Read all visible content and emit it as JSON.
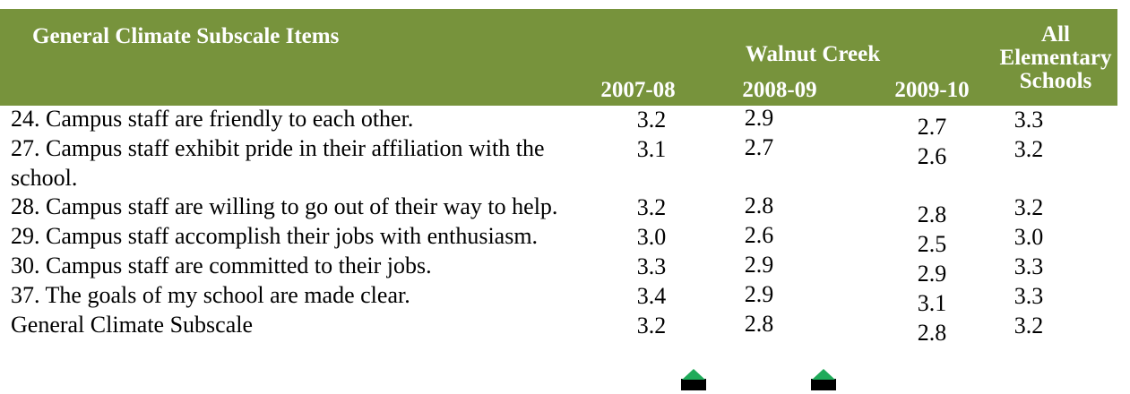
{
  "header": {
    "title": "General Climate Subscale Items",
    "group": "Walnut Creek",
    "years": [
      "2007-08",
      "2008-09",
      "2009-10"
    ],
    "comparison": "All Elementary Schools"
  },
  "table": {
    "rows": [
      [
        "24. Campus staff are friendly to each other.",
        "3.2",
        "2.9",
        "2.7",
        "3.3"
      ],
      [
        "27. Campus staff exhibit pride in their affiliation with the school.",
        "3.1",
        "2.7",
        "2.6",
        "3.2"
      ],
      [
        "28. Campus staff are willing to go out of their way to help.",
        "3.2",
        "2.8",
        "2.8",
        "3.2"
      ],
      [
        "29. Campus staff accomplish their jobs with enthusiasm.",
        "3.0",
        "2.6",
        "2.5",
        "3.0"
      ],
      [
        "30. Campus staff are committed to their jobs.",
        "3.3",
        "2.9",
        "2.9",
        "3.3"
      ],
      [
        "37. The goals of my school are made clear.",
        "3.4",
        "2.9",
        "3.1",
        "3.3"
      ],
      [
        "General Climate Subscale",
        "3.2",
        "2.8",
        "2.8",
        "3.2"
      ]
    ]
  }
}
